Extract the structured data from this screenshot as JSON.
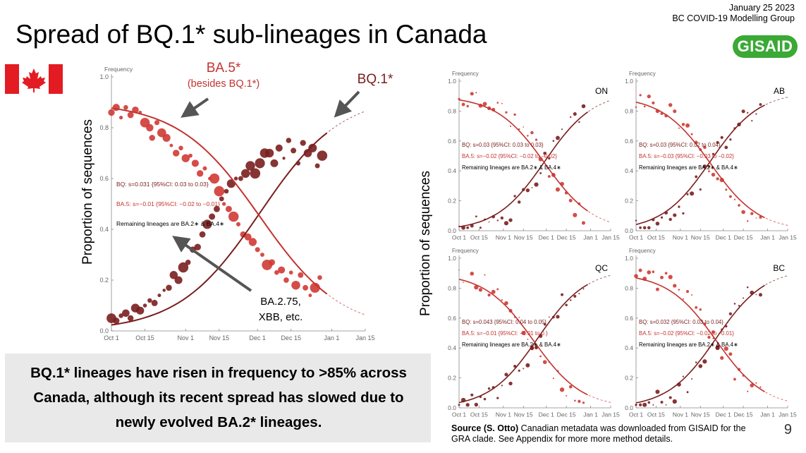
{
  "header": {
    "title": "Spread of BQ.1* sub-lineages in Canada",
    "date": "January 25 2023",
    "group": "BC COVID-19 Modelling Group",
    "logo": "GISAID"
  },
  "colors": {
    "bq": "#7a1e1e",
    "ba5": "#c23330",
    "ba5_light": "#cf3a34",
    "arrow": "#555555"
  },
  "summary": "BQ.1* lineages have risen in frequency to >85% across Canada, although its recent spread has slowed due to newly evolved BA.2* lineages.",
  "source": {
    "bold": "Source (S. Otto)",
    "text": " Canadian metadata was downloaded from GISAID for the GRA clade. See Appendix for more more method details."
  },
  "page_number": "9",
  "y_axis_label": "Proportion of sequences",
  "x_ticks": [
    "Oct 1",
    "Oct 15",
    "Nov 1",
    "Nov 15",
    "Dec 1",
    "Dec 15",
    "Jan 1",
    "Jan 15"
  ],
  "y_ticks": [
    "0.0",
    "0.2",
    "0.4",
    "0.6",
    "0.8",
    "1.0"
  ],
  "frequency_label": "Frequency",
  "main_annotations": {
    "ba5_label": "BA.5*",
    "ba5_sub": "(besides BQ.1*)",
    "bq_label": "BQ.1*",
    "other_label_1": "BA.2.75,",
    "other_label_2": "XBB, etc."
  },
  "chart_data": [
    {
      "region": "Canada",
      "type": "scatter",
      "x_dates": [
        "Oct 1",
        "Oct 15",
        "Nov 1",
        "Nov 15",
        "Dec 1",
        "Dec 15",
        "Jan 1",
        "Jan 15"
      ],
      "ylim": [
        0,
        1
      ],
      "xlim_days": [
        0,
        106
      ],
      "fit_bq": {
        "s": 0.031,
        "t0": 62,
        "ci": "0.03 to 0.03"
      },
      "fit_ba5": {
        "s": -0.01,
        "t0": 62,
        "ci": "-0.02 to -0.01"
      },
      "notes": {
        "bq": "BQ: s=0.031 {95%CI: 0.03 to 0.03}",
        "ba5": "BA.5: s=−0.01 {95%CI: −0.02 to −0.01}",
        "rem": "Remaining lineages are BA.2∗ & BA.4∗"
      },
      "series_ba5": [
        [
          0,
          0.86
        ],
        [
          2,
          0.88
        ],
        [
          4,
          0.84
        ],
        [
          6,
          0.88
        ],
        [
          8,
          0.85
        ],
        [
          10,
          0.87
        ],
        [
          12,
          0.86
        ],
        [
          14,
          0.82
        ],
        [
          16,
          0.8
        ],
        [
          17,
          0.76
        ],
        [
          19,
          0.82
        ],
        [
          21,
          0.78
        ],
        [
          23,
          0.76
        ],
        [
          25,
          0.73
        ],
        [
          27,
          0.7
        ],
        [
          29,
          0.72
        ],
        [
          31,
          0.68
        ],
        [
          33,
          0.69
        ],
        [
          35,
          0.66
        ],
        [
          37,
          0.62
        ],
        [
          39,
          0.64
        ],
        [
          41,
          0.6
        ],
        [
          43,
          0.6
        ],
        [
          45,
          0.55
        ],
        [
          47,
          0.5
        ],
        [
          49,
          0.48
        ],
        [
          51,
          0.45
        ],
        [
          53,
          0.42
        ],
        [
          55,
          0.38
        ],
        [
          57,
          0.37
        ],
        [
          59,
          0.35
        ],
        [
          61,
          0.32
        ],
        [
          63,
          0.3
        ],
        [
          65,
          0.26
        ],
        [
          67,
          0.27
        ],
        [
          69,
          0.23
        ],
        [
          71,
          0.24
        ],
        [
          73,
          0.2
        ],
        [
          75,
          0.23
        ],
        [
          77,
          0.18
        ],
        [
          79,
          0.22
        ],
        [
          81,
          0.17
        ],
        [
          83,
          0.14
        ],
        [
          85,
          0.17
        ],
        [
          87,
          0.21
        ]
      ],
      "series_bq": [
        [
          0,
          0.05
        ],
        [
          2,
          0.04
        ],
        [
          4,
          0.06
        ],
        [
          6,
          0.07
        ],
        [
          8,
          0.05
        ],
        [
          10,
          0.09
        ],
        [
          12,
          0.08
        ],
        [
          14,
          0.1
        ],
        [
          16,
          0.12
        ],
        [
          18,
          0.11
        ],
        [
          20,
          0.14
        ],
        [
          22,
          0.16
        ],
        [
          24,
          0.17
        ],
        [
          26,
          0.22
        ],
        [
          28,
          0.2
        ],
        [
          30,
          0.25
        ],
        [
          32,
          0.27
        ],
        [
          34,
          0.32
        ],
        [
          36,
          0.33
        ],
        [
          38,
          0.38
        ],
        [
          40,
          0.42
        ],
        [
          42,
          0.45
        ],
        [
          44,
          0.48
        ],
        [
          46,
          0.52
        ],
        [
          48,
          0.55
        ],
        [
          50,
          0.58
        ],
        [
          52,
          0.6
        ],
        [
          54,
          0.6
        ],
        [
          56,
          0.62
        ],
        [
          58,
          0.65
        ],
        [
          60,
          0.62
        ],
        [
          62,
          0.66
        ],
        [
          64,
          0.7
        ],
        [
          66,
          0.7
        ],
        [
          68,
          0.66
        ],
        [
          70,
          0.72
        ],
        [
          72,
          0.68
        ],
        [
          74,
          0.75
        ],
        [
          76,
          0.71
        ],
        [
          78,
          0.66
        ],
        [
          80,
          0.74
        ],
        [
          82,
          0.7
        ],
        [
          84,
          0.72
        ],
        [
          86,
          0.65
        ],
        [
          88,
          0.69
        ]
      ]
    },
    {
      "region": "ON",
      "type": "scatter",
      "ylim": [
        0,
        1
      ],
      "xlim_days": [
        0,
        106
      ],
      "fit_bq": {
        "t0": 60
      },
      "fit_ba5": {
        "t0": 60
      },
      "notes": {
        "bq": "BQ: s=0.03 {95%CI: 0.03 to 0.03}",
        "ba5": "BA.5: s=−0.02 {95%CI: −0.02 to −0.02}",
        "rem": "Remaining lineages are BA.2∗ & BA.4∗"
      }
    },
    {
      "region": "AB",
      "type": "scatter",
      "ylim": [
        0,
        1
      ],
      "xlim_days": [
        0,
        106
      ],
      "fit_bq": {
        "t0": 52
      },
      "fit_ba5": {
        "t0": 52
      },
      "notes": {
        "bq": "BQ: s=0.03 {95%CI: 0.02 to 0.04}",
        "ba5": "BA.5: s=−0.03 {95%CI: −0.03 to −0.02}",
        "rem": "Remaining lineages are BA.2∗ & BA.4∗"
      }
    },
    {
      "region": "QC",
      "type": "scatter",
      "ylim": [
        0,
        1
      ],
      "xlim_days": [
        0,
        106
      ],
      "fit_bq": {
        "t0": 55
      },
      "fit_ba5": {
        "t0": 52
      },
      "notes": {
        "bq": "BQ: s=0.043 {95%CI: 0.04 to 0.05}",
        "ba5": "BA.5: s=−0.01 {95%CI: −0.01 to 0.}",
        "rem": "Remaining lineages are BA.2∗ & BA.4∗"
      }
    },
    {
      "region": "BC",
      "type": "scatter",
      "ylim": [
        0,
        1
      ],
      "xlim_days": [
        0,
        106
      ],
      "fit_bq": {
        "t0": 56
      },
      "fit_ba5": {
        "t0": 56
      },
      "notes": {
        "bq": "BQ: s=0.032 {95%CI: 0.03 to 0.04}",
        "ba5": "BA.5: s=−0.02 {95%CI: −0.02 to −0.01}",
        "rem": "Remaining lineages are BA.2∗ & BA.4∗"
      }
    }
  ]
}
